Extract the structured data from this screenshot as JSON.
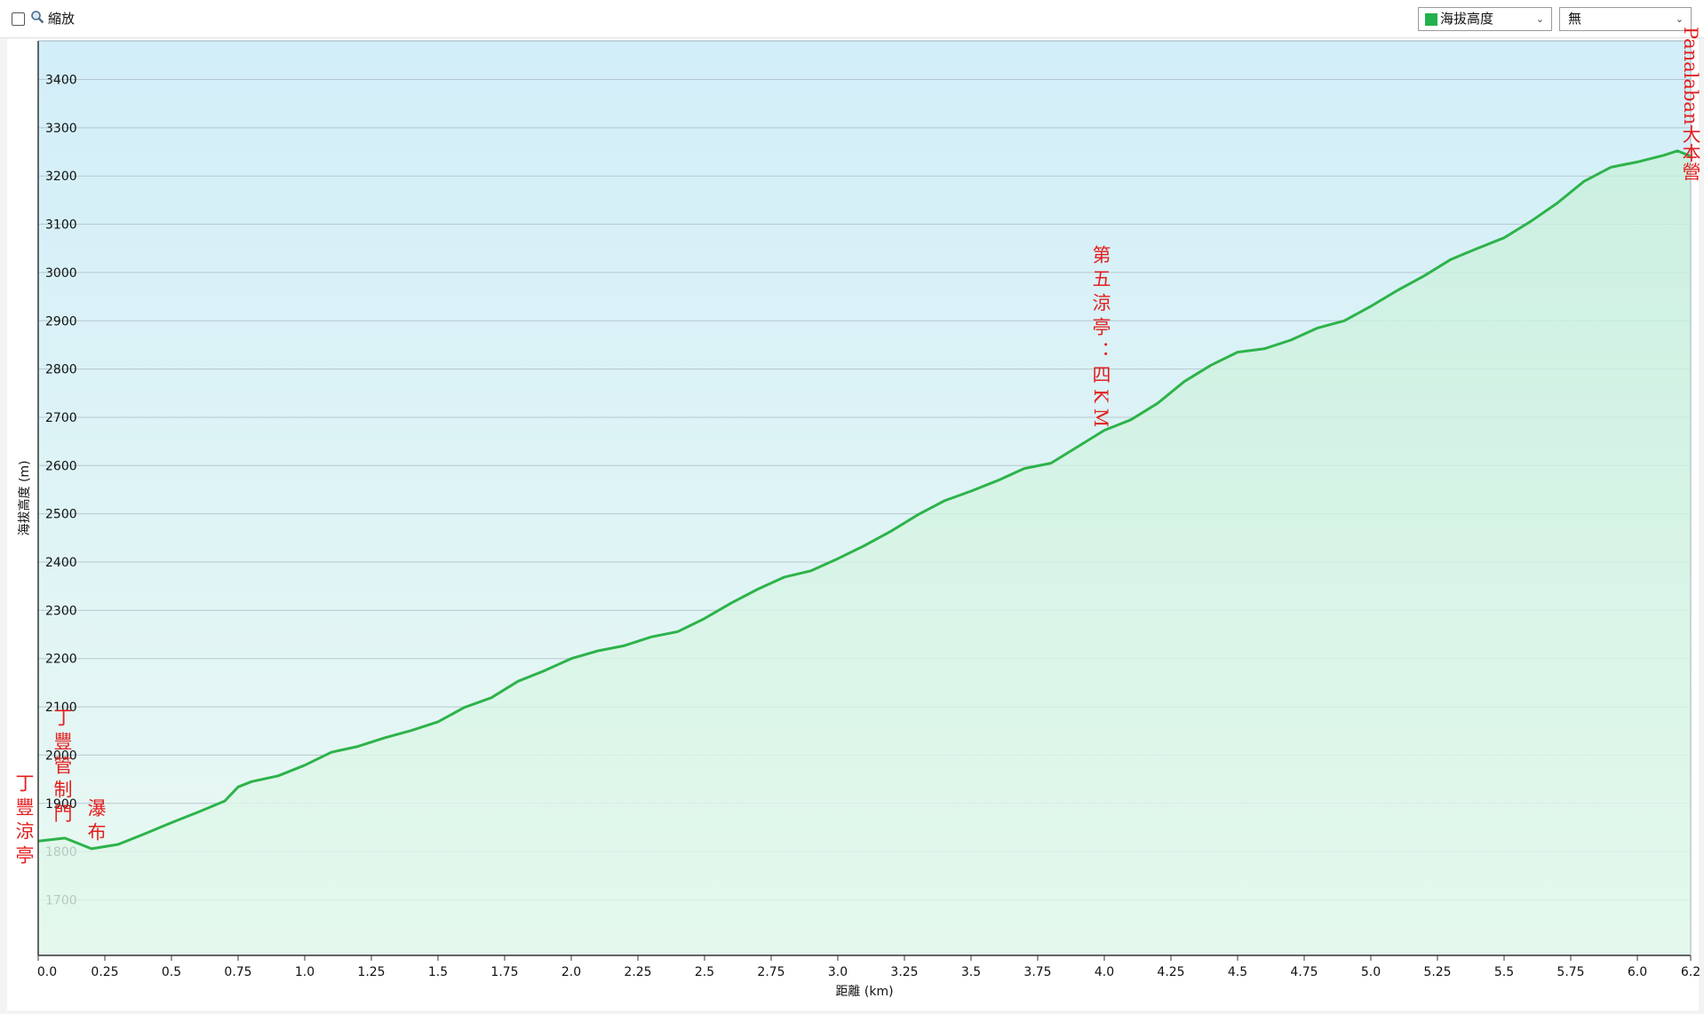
{
  "toolbar": {
    "zoom_label": "縮放",
    "series_select": "海拔高度",
    "second_select": "無"
  },
  "chart_data": {
    "type": "area",
    "x_label": "距離 (km)",
    "y_label": "海拔高度 (m)",
    "series": [
      {
        "name": "海拔高度",
        "color": "#2db34a",
        "x": [
          0,
          0.1,
          0.2,
          0.3,
          0.4,
          0.5,
          0.6,
          0.7,
          0.75,
          0.8,
          0.9,
          1.0,
          1.1,
          1.2,
          1.3,
          1.4,
          1.5,
          1.6,
          1.7,
          1.8,
          1.9,
          2.0,
          2.1,
          2.2,
          2.3,
          2.4,
          2.5,
          2.6,
          2.7,
          2.8,
          2.9,
          3.0,
          3.1,
          3.2,
          3.3,
          3.4,
          3.5,
          3.6,
          3.7,
          3.8,
          3.9,
          4.0,
          4.1,
          4.2,
          4.3,
          4.4,
          4.5,
          4.6,
          4.7,
          4.8,
          4.9,
          5.0,
          5.1,
          5.2,
          5.3,
          5.4,
          5.5,
          5.6,
          5.7,
          5.8,
          5.9,
          6.0,
          6.1,
          6.15,
          6.2
        ],
        "values": [
          1822,
          1828,
          1806,
          1815,
          1837,
          1860,
          1882,
          1905,
          1934,
          1945,
          1957,
          1979,
          2006,
          2018,
          2036,
          2051,
          2069,
          2099,
          2119,
          2153,
          2175,
          2200,
          2216,
          2227,
          2245,
          2256,
          2283,
          2315,
          2344,
          2369,
          2382,
          2407,
          2434,
          2464,
          2498,
          2527,
          2547,
          2569,
          2594,
          2605,
          2639,
          2673,
          2695,
          2729,
          2774,
          2808,
          2835,
          2842,
          2860,
          2885,
          2900,
          2930,
          2963,
          2993,
          3027,
          3050,
          3072,
          3106,
          3144,
          3189,
          3218,
          3229,
          3243,
          3252,
          3241
        ]
      }
    ],
    "xlim": [
      0,
      6.2
    ],
    "ylim": [
      1585,
      3480
    ],
    "xticks": [
      {
        "value": 0,
        "label": "0.0"
      },
      0.25,
      0.5,
      0.75,
      {
        "value": 1,
        "label": "1.0"
      },
      1.25,
      1.5,
      1.75,
      {
        "value": 2,
        "label": "2.0"
      },
      2.25,
      2.5,
      2.75,
      {
        "value": 3,
        "label": "3.0"
      },
      3.25,
      3.5,
      3.75,
      {
        "value": 4,
        "label": "4.0"
      },
      4.25,
      4.5,
      4.75,
      {
        "value": 5,
        "label": "5.0"
      },
      5.25,
      5.5,
      5.75,
      {
        "value": 6,
        "label": "6.0"
      },
      6.2
    ],
    "yticks": [
      1700,
      1800,
      1900,
      2000,
      2100,
      2200,
      2300,
      2400,
      2500,
      2600,
      2700,
      2800,
      2900,
      3000,
      3100,
      3200,
      3300,
      3400
    ],
    "grid": true,
    "annotations": [
      "丁豐涼亭",
      "丁豐管制門",
      "瀑布",
      "第五涼亭：四KM",
      "Panalaban大本營"
    ]
  }
}
